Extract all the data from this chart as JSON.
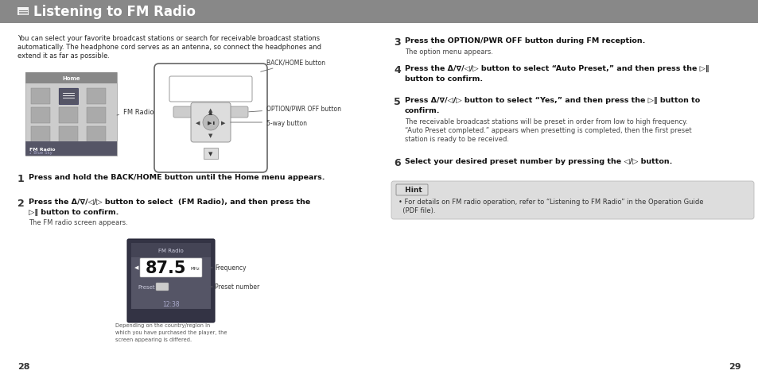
{
  "title": "Listening to FM Radio",
  "title_bg_color": "#888888",
  "title_text_color": "#ffffff",
  "bg_color": "#ffffff",
  "page_left": "28",
  "page_right": "29",
  "intro_line1": "You can select your favorite broadcast stations or search for receivable broadcast stations",
  "intro_line2": "automatically. The headphone cord serves as an antenna, so connect the headphones and",
  "intro_line3": "extend it as far as possible.",
  "step1_bold": "Press and hold the BACK/HOME button until the Home menu appears.",
  "step2_bold1": "Press the Δ/∇/◁/▷ button to select  (FM Radio), and then press the",
  "step2_bold2": "▷‖ button to confirm.",
  "step2_sub": "The FM radio screen appears.",
  "step3_bold": "Press the OPTION/PWR OFF button during FM reception.",
  "step3_sub": "The option menu appears.",
  "step4_bold1": "Press the Δ/∇/◁/▷ button to select “Auto Preset,” and then press the ▷‖",
  "step4_bold2": "button to confirm.",
  "step5_bold1": "Press Δ/∇/◁/▷ button to select “Yes,” and then press the ▷‖ button to",
  "step5_bold2": "confirm.",
  "step5_sub1": "The receivable broadcast stations will be preset in order from low to high frequency.",
  "step5_sub2": "“Auto Preset completed.” appears when presetting is completed, then the first preset",
  "step5_sub3": "station is ready to be received.",
  "step6_bold": "Select your desired preset number by pressing the ◁/▷ button.",
  "hint_title": " Hint",
  "hint_text1": "• For details on FM radio operation, refer to “Listening to FM Radio” in the Operation Guide",
  "hint_text2": "  (PDF file).",
  "caption_line1": "Depending on the country/region in",
  "caption_line2": "which you have purchased the player, the",
  "caption_line3": "screen appearing is differed.",
  "label_fm_radio": "FM Radio",
  "label_back_home": "BACK/HOME button",
  "label_option_pwr": "OPTION/PWR OFF button",
  "label_5way": "5-way button",
  "label_frequency": "Frequency",
  "label_preset": "Preset number",
  "freq_value": "87.5",
  "hint_bg": "#dddddd",
  "screen_bg": "#555566",
  "screen_header": "#444455"
}
